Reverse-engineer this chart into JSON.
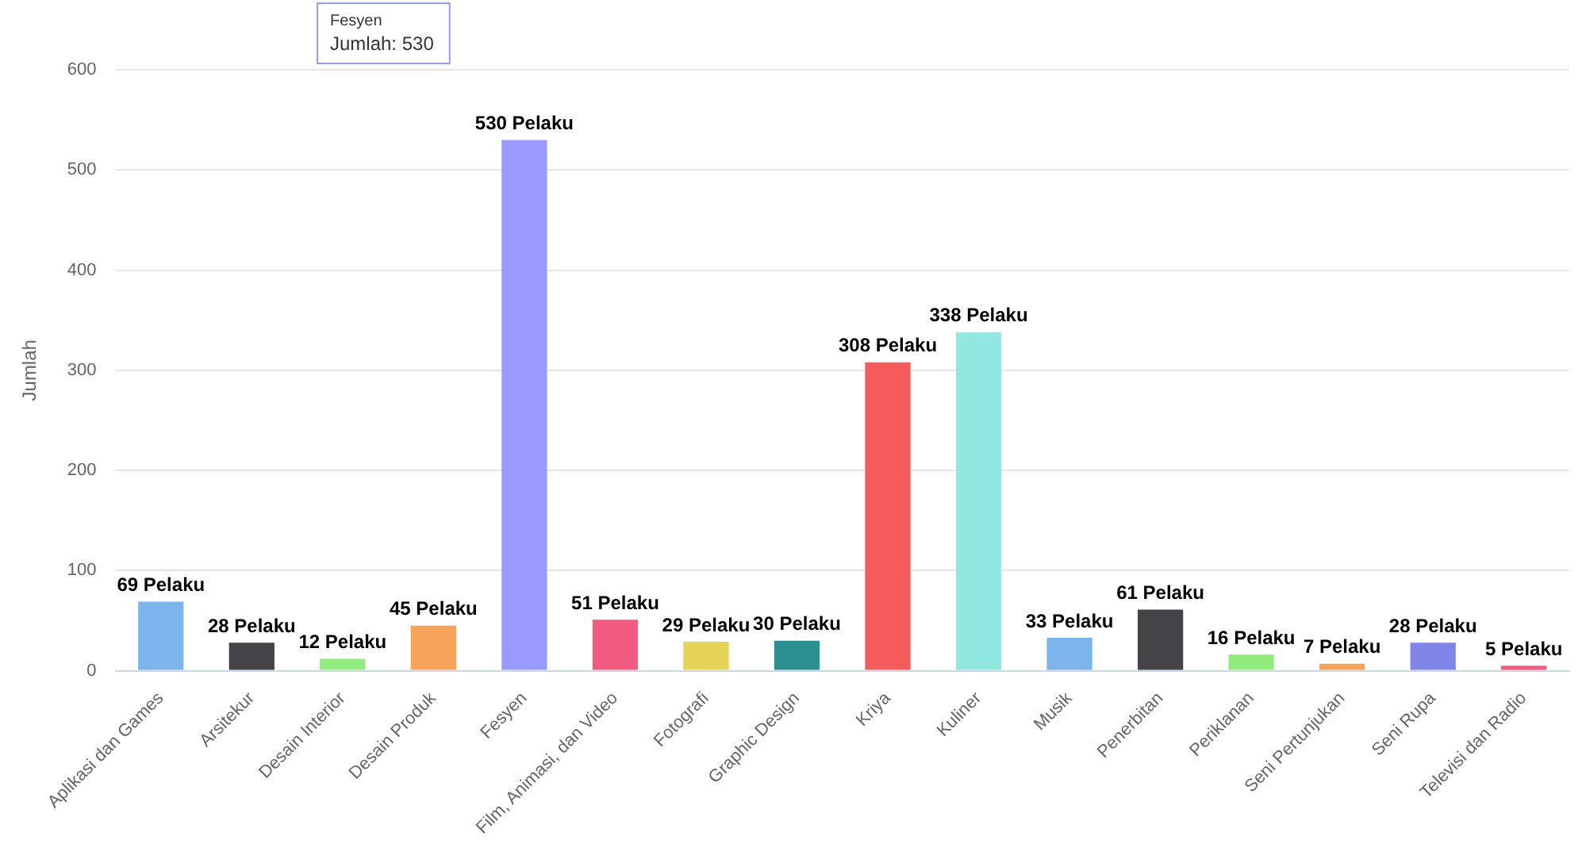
{
  "chart_data": {
    "type": "bar",
    "ylabel": "Jumlah",
    "categories": [
      "Aplikasi dan Games",
      "Arsitekur",
      "Desain Interior",
      "Desain Produk",
      "Fesyen",
      "Film, Animasi, dan Video",
      "Fotografi",
      "Graphic Design",
      "Kriya",
      "Kuliner",
      "Musik",
      "Penerbitan",
      "Periklanan",
      "Seni Pertunjukan",
      "Seni Rupa",
      "Televisi dan Radio"
    ],
    "series": [
      {
        "values": [
          69,
          28,
          12,
          45,
          530,
          51,
          29,
          30,
          308,
          338,
          33,
          61,
          16,
          7,
          28,
          5
        ],
        "colors": [
          "#7cb5ec",
          "#434348",
          "#90ed7d",
          "#f7a35c",
          "#9999ff",
          "#f15c80",
          "#e4d354",
          "#2b908f",
          "#f45b5b",
          "#91e8e1",
          "#7cb5ec",
          "#434348",
          "#90ed7d",
          "#f7a35c",
          "#8085e9",
          "#f15c80"
        ],
        "value_labels": [
          "69 Pelaku",
          "28 Pelaku",
          "12 Pelaku",
          "45 Pelaku",
          "530 Pelaku",
          "51 Pelaku",
          "29 Pelaku",
          "30 Pelaku",
          "308 Pelaku",
          "338 Pelaku",
          "33 Pelaku",
          "61 Pelaku",
          "16 Pelaku",
          "7 Pelaku",
          "28 Pelaku",
          "5 Pelaku"
        ]
      }
    ],
    "ylim": [
      0,
      600
    ],
    "yticks": [
      0,
      100,
      200,
      300,
      400,
      500,
      600
    ],
    "grid": "y",
    "legend": false,
    "annotations": [
      "Fesyen",
      "Jumlah: 530"
    ]
  }
}
